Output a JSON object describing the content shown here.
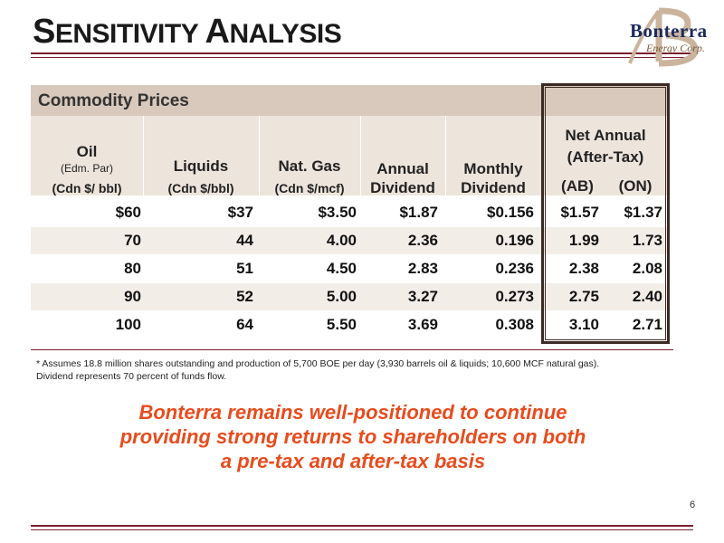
{
  "slide": {
    "title_parts": [
      {
        "text": "S",
        "big": true
      },
      {
        "text": "ENSITIVITY ",
        "big": false
      },
      {
        "text": "A",
        "big": true
      },
      {
        "text": "NALYSIS",
        "big": false
      }
    ],
    "logo_name": "Bonterra",
    "logo_sub": "Energy Corp.",
    "page_number": "6"
  },
  "table": {
    "section_label": "Commodity Prices",
    "headers": {
      "oil": "Oil",
      "oil_sub": "(Edm. Par)",
      "oil_unit": "(Cdn $/ bbl)",
      "liquids": "Liquids",
      "liquids_unit": "(Cdn $/bbl)",
      "gas": "Nat. Gas",
      "gas_unit": "(Cdn $/mcf)",
      "annual_1": "Annual",
      "annual_2": "Dividend",
      "monthly_1": "Monthly",
      "monthly_2": "Dividend",
      "net_1": "Net Annual",
      "net_2": "(After-Tax)",
      "ab": "(AB)",
      "on": "(ON)"
    },
    "rows": [
      {
        "oil": "$60",
        "liquids": "$37",
        "gas": "$3.50",
        "annual": "$1.87",
        "monthly": "$0.156",
        "ab": "$1.57",
        "on": "$1.37"
      },
      {
        "oil": "70",
        "liquids": "44",
        "gas": "4.00",
        "annual": "2.36",
        "monthly": "0.196",
        "ab": "1.99",
        "on": "1.73"
      },
      {
        "oil": "80",
        "liquids": "51",
        "gas": "4.50",
        "annual": "2.83",
        "monthly": "0.236",
        "ab": "2.38",
        "on": "2.08"
      },
      {
        "oil": "90",
        "liquids": "52",
        "gas": "5.00",
        "annual": "3.27",
        "monthly": "0.273",
        "ab": "2.75",
        "on": "2.40"
      },
      {
        "oil": "100",
        "liquids": "64",
        "gas": "5.50",
        "annual": "3.69",
        "monthly": "0.308",
        "ab": "3.10",
        "on": "2.71"
      }
    ]
  },
  "footnote": {
    "line1": "* Assumes 18.8 million shares outstanding and production of 5,700 BOE per day (3,930 barrels oil & liquids; 10,600 MCF natural gas).",
    "line2": "Dividend represents 70 percent of funds flow."
  },
  "callout": {
    "line1": "Bonterra remains well-positioned to continue",
    "line2": "providing strong returns to shareholders on both",
    "line3": "a pre-tax and after-tax basis"
  },
  "colors": {
    "accent": "#7a1e2e",
    "header_bar": "#d9c9bc",
    "callout": "#e84b1c"
  }
}
